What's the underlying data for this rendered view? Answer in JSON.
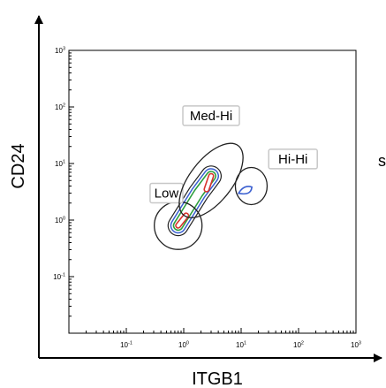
{
  "chart_data": {
    "type": "contour",
    "xlabel": "ITGB1",
    "ylabel": "CD24",
    "xscale": "log",
    "yscale": "log",
    "xlim": [
      0.01,
      1000
    ],
    "ylim": [
      0.01,
      1000
    ],
    "x_ticks": [
      {
        "value": 0.1,
        "base": "10",
        "exp": "-1"
      },
      {
        "value": 1,
        "base": "10",
        "exp": "0"
      },
      {
        "value": 10,
        "base": "10",
        "exp": "1"
      },
      {
        "value": 100,
        "base": "10",
        "exp": "2"
      },
      {
        "value": 1000,
        "base": "10",
        "exp": "3"
      }
    ],
    "y_ticks": [
      {
        "value": 0.1,
        "base": "10",
        "exp": "-1"
      },
      {
        "value": 1,
        "base": "10",
        "exp": "0"
      },
      {
        "value": 10,
        "base": "10",
        "exp": "1"
      },
      {
        "value": 100,
        "base": "10",
        "exp": "2"
      },
      {
        "value": 1000,
        "base": "10",
        "exp": "3"
      }
    ],
    "gates": [
      {
        "label": "Low",
        "center": [
          0.8,
          0.8
        ],
        "label_anchor": [
          0.5,
          3.0
        ]
      },
      {
        "label": "Med-Hi",
        "center": [
          3.0,
          5.0
        ],
        "label_anchor": [
          3.0,
          70
        ]
      },
      {
        "label": "Hi-Hi",
        "center": [
          15,
          4.0
        ],
        "label_anchor": [
          80,
          12
        ]
      }
    ],
    "contour_colors": {
      "outer": "#222222",
      "blue": "#3a5fd0",
      "green": "#2e9e3e",
      "red": "#d8342c"
    },
    "populations": [
      {
        "name": "main",
        "points": [
          [
            0.8,
            0.8
          ],
          [
            1.8,
            3.0
          ],
          [
            3.0,
            6.0
          ]
        ]
      },
      {
        "name": "right",
        "points": [
          [
            12,
            3.2
          ]
        ]
      }
    ],
    "cut_text": "s"
  }
}
